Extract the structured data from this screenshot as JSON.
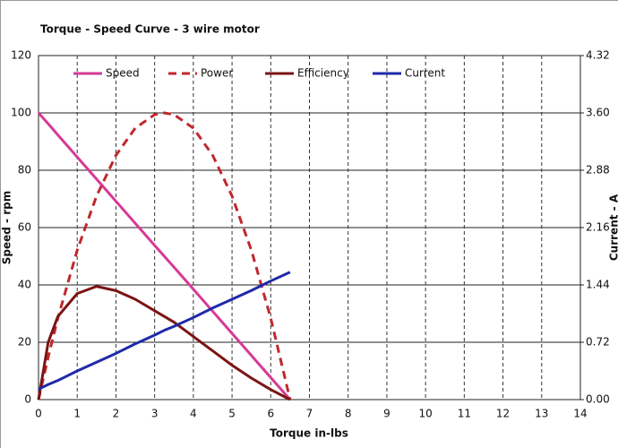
{
  "chart_data": {
    "type": "line",
    "title": "Torque - Speed Curve  - 3 wire motor",
    "x_label": "Torque in-lbs",
    "y_label": "Speed - rpm",
    "y2_label": "Current - A",
    "x": [
      0,
      0.25,
      0.5,
      1,
      1.5,
      2,
      2.5,
      3,
      3.25,
      3.5,
      4,
      4.5,
      5,
      5.5,
      6,
      6.5
    ],
    "series": [
      {
        "name": "Speed",
        "color": "#d63a96",
        "dashed": false,
        "values": [
          100,
          96.2,
          92.3,
          84.6,
          76.9,
          69.2,
          61.5,
          53.8,
          50,
          46.2,
          38.5,
          30.8,
          23.1,
          15.4,
          7.7,
          0
        ]
      },
      {
        "name": "Power",
        "color": "#c0282d",
        "dashed": true,
        "values": [
          0,
          14.8,
          28.4,
          52.1,
          71.0,
          85.2,
          94.7,
          99.4,
          100,
          99.4,
          94.7,
          85.2,
          71.0,
          52.1,
          28.4,
          0
        ]
      },
      {
        "name": "Efficiency",
        "color": "#7b1414",
        "dashed": false,
        "values": [
          0,
          20,
          29,
          37,
          39.5,
          38,
          35,
          31,
          29,
          27,
          22,
          17,
          12,
          7.5,
          3.5,
          0
        ]
      },
      {
        "name": "Current",
        "color": "#1f2aa8",
        "dashed": false,
        "axis": "y2",
        "values": [
          0.13,
          0.19,
          0.24,
          0.36,
          0.47,
          0.58,
          0.7,
          0.81,
          0.87,
          0.92,
          1.03,
          1.15,
          1.26,
          1.37,
          1.49,
          1.6
        ]
      }
    ],
    "xlim": [
      0,
      14
    ],
    "xticks": [
      0,
      1,
      2,
      3,
      4,
      5,
      6,
      7,
      8,
      9,
      10,
      11,
      12,
      13,
      14
    ],
    "ylim": [
      0,
      120
    ],
    "yticks": [
      0,
      20,
      40,
      60,
      80,
      100,
      120
    ],
    "y2lim": [
      0,
      4.32
    ],
    "y2ticks": [
      {
        "value": 0,
        "label": "0.00"
      },
      0.72,
      1.44,
      2.16,
      2.88,
      {
        "value": 3.6,
        "label": "3.60"
      },
      4.32
    ],
    "grid": true,
    "legend": "top"
  }
}
